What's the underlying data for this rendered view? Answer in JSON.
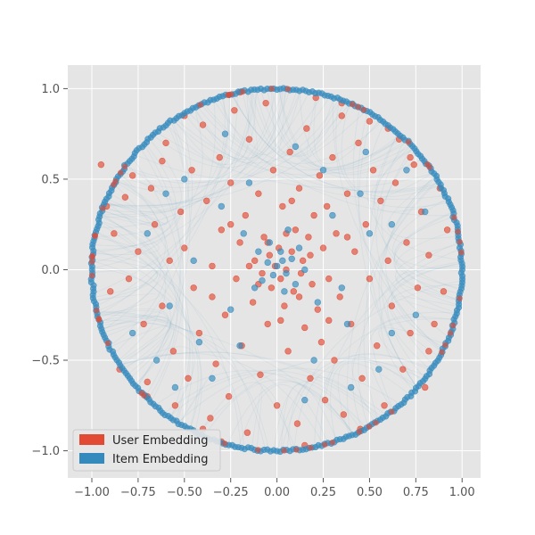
{
  "chart_data": {
    "type": "scatter",
    "title": "",
    "xlabel": "",
    "ylabel": "",
    "xlim": [
      -1.13,
      1.1
    ],
    "ylim": [
      -1.15,
      1.13
    ],
    "grid": true,
    "legend_placement": "lower-left",
    "x_ticks": [
      "−1.00",
      "−0.75",
      "−0.50",
      "−0.25",
      "0.00",
      "0.25",
      "0.50",
      "0.75",
      "1.00"
    ],
    "x_tick_values": [
      -1.0,
      -0.75,
      -0.5,
      -0.25,
      0.0,
      0.25,
      0.5,
      0.75,
      1.0
    ],
    "y_ticks": [
      "−1.0",
      "−0.5",
      "0.0",
      "0.5",
      "1.0"
    ],
    "y_tick_values": [
      -1.0,
      -0.5,
      0.0,
      0.5,
      1.0
    ],
    "colors": {
      "background": "#e5e5e5",
      "grid": "#ffffff",
      "user": "#e24a33",
      "item": "#348abd"
    },
    "series": [
      {
        "name": "User Embedding",
        "color": "#e24a33",
        "points": [
          [
            -0.95,
            0.58
          ],
          [
            -0.92,
            0.35
          ],
          [
            -0.88,
            0.2
          ],
          [
            -0.9,
            -0.12
          ],
          [
            -0.85,
            -0.55
          ],
          [
            -0.8,
            -0.05
          ],
          [
            -0.78,
            0.52
          ],
          [
            -0.75,
            0.1
          ],
          [
            -0.72,
            -0.3
          ],
          [
            -0.7,
            -0.62
          ],
          [
            -0.68,
            0.45
          ],
          [
            -0.66,
            0.25
          ],
          [
            -0.62,
            -0.2
          ],
          [
            -0.6,
            0.7
          ],
          [
            -0.58,
            0.05
          ],
          [
            -0.56,
            -0.45
          ],
          [
            -0.55,
            -0.75
          ],
          [
            -0.52,
            0.32
          ],
          [
            -0.5,
            0.12
          ],
          [
            -0.48,
            -0.6
          ],
          [
            -0.46,
            0.55
          ],
          [
            -0.45,
            -0.1
          ],
          [
            -0.42,
            -0.35
          ],
          [
            -0.4,
            0.8
          ],
          [
            -0.38,
            0.38
          ],
          [
            -0.36,
            -0.82
          ],
          [
            -0.35,
            0.02
          ],
          [
            -0.33,
            -0.52
          ],
          [
            -0.31,
            0.62
          ],
          [
            -0.3,
            0.22
          ],
          [
            -0.28,
            -0.25
          ],
          [
            -0.26,
            -0.7
          ],
          [
            -0.25,
            0.48
          ],
          [
            -0.23,
            0.88
          ],
          [
            -0.22,
            -0.05
          ],
          [
            -0.2,
            0.15
          ],
          [
            -0.19,
            -0.42
          ],
          [
            -0.17,
            0.3
          ],
          [
            -0.16,
            -0.9
          ],
          [
            -0.15,
            0.72
          ],
          [
            -0.13,
            -0.18
          ],
          [
            -0.12,
            0.05
          ],
          [
            -0.1,
            0.42
          ],
          [
            -0.09,
            -0.58
          ],
          [
            -0.08,
            -0.02
          ],
          [
            -0.07,
            0.18
          ],
          [
            -0.06,
            0.92
          ],
          [
            -0.05,
            -0.3
          ],
          [
            -0.04,
            0.08
          ],
          [
            -0.03,
            -0.1
          ],
          [
            -0.02,
            0.55
          ],
          [
            -0.01,
            0.02
          ],
          [
            0.0,
            -0.75
          ],
          [
            0.01,
            0.12
          ],
          [
            0.02,
            -0.05
          ],
          [
            0.03,
            0.35
          ],
          [
            0.04,
            -0.2
          ],
          [
            0.05,
            0.0
          ],
          [
            0.06,
            -0.45
          ],
          [
            0.07,
            0.65
          ],
          [
            0.08,
            0.1
          ],
          [
            0.09,
            -0.12
          ],
          [
            0.1,
            0.22
          ],
          [
            0.11,
            -0.85
          ],
          [
            0.12,
            0.45
          ],
          [
            0.13,
            -0.02
          ],
          [
            0.14,
            0.05
          ],
          [
            0.15,
            -0.32
          ],
          [
            0.16,
            0.78
          ],
          [
            0.17,
            0.18
          ],
          [
            0.18,
            -0.6
          ],
          [
            0.19,
            -0.08
          ],
          [
            0.2,
            0.3
          ],
          [
            0.21,
            0.95
          ],
          [
            0.22,
            -0.22
          ],
          [
            0.23,
            0.52
          ],
          [
            0.24,
            -0.4
          ],
          [
            0.25,
            0.12
          ],
          [
            0.26,
            -0.72
          ],
          [
            0.27,
            0.35
          ],
          [
            0.28,
            -0.05
          ],
          [
            0.3,
            0.62
          ],
          [
            0.31,
            -0.5
          ],
          [
            0.32,
            0.2
          ],
          [
            0.34,
            -0.15
          ],
          [
            0.35,
            0.85
          ],
          [
            0.36,
            -0.8
          ],
          [
            0.38,
            0.42
          ],
          [
            0.4,
            -0.3
          ],
          [
            0.42,
            0.1
          ],
          [
            0.44,
            0.7
          ],
          [
            0.46,
            -0.6
          ],
          [
            0.48,
            0.25
          ],
          [
            0.5,
            -0.05
          ],
          [
            0.52,
            0.55
          ],
          [
            0.54,
            -0.42
          ],
          [
            0.56,
            0.38
          ],
          [
            0.58,
            -0.75
          ],
          [
            0.6,
            0.05
          ],
          [
            0.62,
            -0.2
          ],
          [
            0.64,
            0.48
          ],
          [
            0.66,
            0.72
          ],
          [
            0.68,
            -0.55
          ],
          [
            0.7,
            0.15
          ],
          [
            0.72,
            -0.35
          ],
          [
            0.74,
            0.58
          ],
          [
            0.76,
            -0.1
          ],
          [
            0.78,
            0.32
          ],
          [
            0.8,
            -0.65
          ],
          [
            0.82,
            0.08
          ],
          [
            0.85,
            -0.3
          ],
          [
            0.88,
            0.45
          ],
          [
            0.9,
            -0.12
          ],
          [
            0.92,
            0.22
          ],
          [
            -0.2,
            0.98
          ],
          [
            0.35,
            0.92
          ],
          [
            -0.5,
            0.85
          ],
          [
            0.6,
            0.78
          ],
          [
            -0.7,
            -0.7
          ],
          [
            0.45,
            -0.88
          ],
          [
            -0.3,
            -0.95
          ],
          [
            0.15,
            -0.97
          ],
          [
            -0.82,
            0.4
          ],
          [
            0.82,
            -0.45
          ],
          [
            -0.62,
            0.6
          ],
          [
            0.72,
            0.62
          ],
          [
            -0.4,
            -0.88
          ],
          [
            0.5,
            0.82
          ],
          [
            -0.15,
            0.02
          ],
          [
            0.12,
            -0.15
          ],
          [
            -0.05,
            0.15
          ],
          [
            0.05,
            0.2
          ],
          [
            -0.1,
            -0.08
          ],
          [
            0.02,
            -0.28
          ],
          [
            0.18,
            0.08
          ],
          [
            -0.25,
            0.25
          ],
          [
            0.28,
            -0.28
          ],
          [
            -0.35,
            -0.15
          ],
          [
            0.38,
            0.18
          ],
          [
            0.08,
            0.38
          ]
        ]
      },
      {
        "name": "Item Embedding",
        "color": "#348abd",
        "points": [
          [
            0.0,
            0.02
          ],
          [
            0.03,
            0.05
          ],
          [
            -0.02,
            -0.03
          ],
          [
            0.05,
            -0.02
          ],
          [
            -0.05,
            0.04
          ],
          [
            0.02,
            0.1
          ],
          [
            0.08,
            0.06
          ],
          [
            -0.08,
            -0.06
          ],
          [
            0.1,
            -0.08
          ],
          [
            -0.1,
            0.1
          ],
          [
            0.04,
            -0.12
          ],
          [
            -0.04,
            0.15
          ],
          [
            0.12,
            0.12
          ],
          [
            -0.12,
            -0.1
          ],
          [
            0.15,
            0.0
          ],
          [
            0.06,
            0.22
          ],
          [
            -0.18,
            0.2
          ],
          [
            0.22,
            -0.18
          ],
          [
            -0.25,
            -0.22
          ],
          [
            0.3,
            0.3
          ],
          [
            -0.3,
            0.35
          ],
          [
            0.38,
            -0.3
          ],
          [
            -0.42,
            -0.4
          ],
          [
            0.45,
            0.42
          ],
          [
            -0.5,
            0.5
          ],
          [
            0.55,
            -0.55
          ],
          [
            -0.58,
            -0.2
          ],
          [
            0.62,
            0.25
          ],
          [
            -0.65,
            -0.5
          ],
          [
            0.1,
            0.68
          ],
          [
            0.48,
            0.65
          ],
          [
            -0.35,
            -0.6
          ],
          [
            0.2,
            -0.5
          ],
          [
            -0.15,
            0.48
          ],
          [
            0.35,
            -0.1
          ],
          [
            -0.45,
            0.05
          ],
          [
            0.62,
            -0.35
          ],
          [
            -0.7,
            0.2
          ],
          [
            0.25,
            0.55
          ],
          [
            -0.2,
            -0.42
          ],
          [
            0.5,
            0.2
          ],
          [
            -0.55,
            -0.65
          ],
          [
            0.7,
            0.55
          ],
          [
            -0.6,
            0.42
          ],
          [
            0.4,
            -0.65
          ],
          [
            0.15,
            -0.72
          ],
          [
            -0.28,
            0.75
          ],
          [
            0.75,
            -0.25
          ],
          [
            -0.78,
            -0.35
          ],
          [
            0.8,
            0.32
          ]
        ]
      }
    ]
  }
}
